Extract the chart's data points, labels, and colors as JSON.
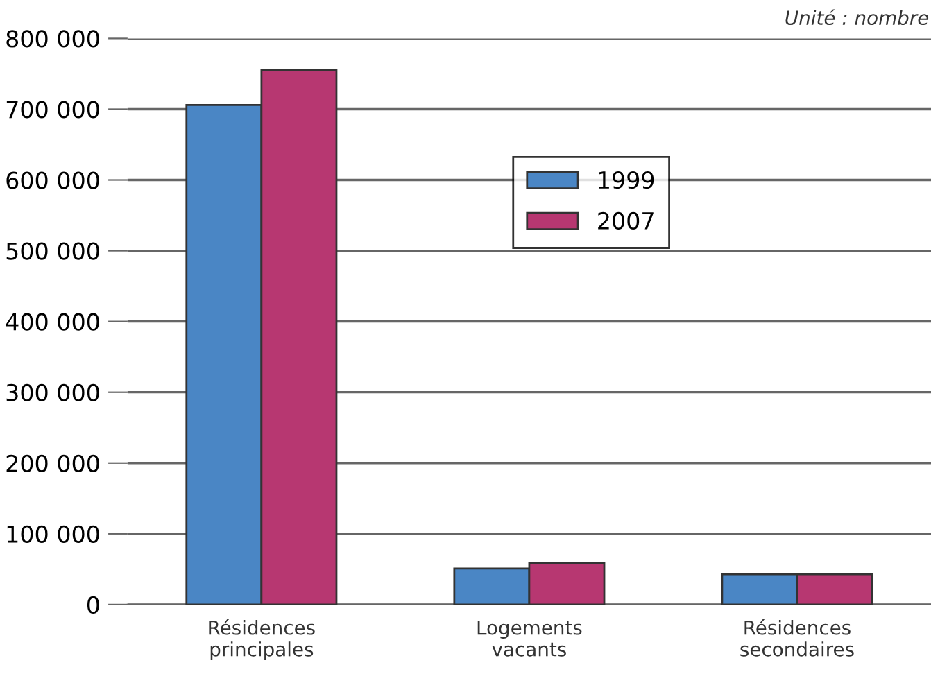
{
  "chart_data": {
    "type": "bar",
    "annotations": [
      "Unité : nombre"
    ],
    "categories": [
      "Résidences\nprincipales",
      "Logements\nvacants",
      "Résidences\nsecondaires"
    ],
    "series": [
      {
        "name": "1999",
        "color": "#4a86c5",
        "values": [
          706000,
          51000,
          43000
        ]
      },
      {
        "name": "2007",
        "color": "#b73771",
        "values": [
          755000,
          59000,
          43000
        ]
      }
    ],
    "ylim": [
      0,
      800000
    ],
    "yticks": [
      {
        "value": 0,
        "label": "0"
      },
      {
        "value": 100000,
        "label": "100 000"
      },
      {
        "value": 200000,
        "label": "200 000"
      },
      {
        "value": 300000,
        "label": "300 000"
      },
      {
        "value": 400000,
        "label": "400 000"
      },
      {
        "value": 500000,
        "label": "500 000"
      },
      {
        "value": 600000,
        "label": "600 000"
      },
      {
        "value": 700000,
        "label": "700 000"
      },
      {
        "value": 800000,
        "label": "800 000"
      }
    ],
    "grid": "y",
    "legend": "top center"
  }
}
